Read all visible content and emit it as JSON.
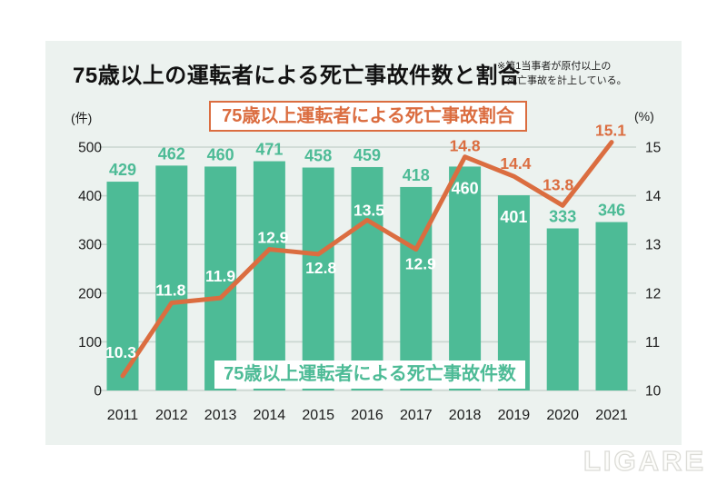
{
  "header": {
    "title": "75歳以上の運転者による死亡事故件数と割合",
    "note_line1": "※第1当事者が原付以上の",
    "note_line2": "死亡事故を計上している。"
  },
  "legend": {
    "rate_label": "75歳以上運転者による死亡事故割合",
    "count_label": "75歳以上運転者による死亡事故件数"
  },
  "page": {
    "watermark": "LIGARE"
  },
  "colors": {
    "background": "#ecf2ef",
    "bar": "#4dbb96",
    "line": "#db6d40",
    "grid": "#c9d5cf",
    "axis_text": "#1b1b1b",
    "label_on_bar": "#ffffff"
  },
  "chart_data": {
    "type": "bar+line",
    "title": "75歳以上の運転者による死亡事故件数と割合",
    "categories": [
      "2011",
      "2012",
      "2013",
      "2014",
      "2015",
      "2016",
      "2017",
      "2018",
      "2019",
      "2020",
      "2021"
    ],
    "series": [
      {
        "name": "75歳以上運転者による死亡事故件数",
        "type": "bar",
        "axis": "left",
        "values": [
          429,
          462,
          460,
          471,
          458,
          459,
          418,
          460,
          401,
          333,
          346
        ],
        "label_inside_indices": [
          7,
          8
        ]
      },
      {
        "name": "75歳以上運転者による死亡事故割合",
        "type": "line",
        "axis": "right",
        "values": [
          10.3,
          11.8,
          11.9,
          12.9,
          12.8,
          13.5,
          12.9,
          14.8,
          14.4,
          13.8,
          15.1
        ],
        "label_offsets": [
          [
            -2,
            -26
          ],
          [
            -1,
            -14
          ],
          [
            0,
            -24
          ],
          [
            4,
            -13
          ],
          [
            3,
            15
          ],
          [
            2,
            -11
          ],
          [
            5,
            16
          ],
          [
            0,
            -12
          ],
          [
            2,
            -14
          ],
          [
            -5,
            -23
          ],
          [
            -1,
            -13
          ]
        ],
        "label_on_bar": [
          true,
          true,
          true,
          true,
          true,
          true,
          true,
          false,
          false,
          false,
          false
        ]
      }
    ],
    "left_axis": {
      "unit": "(件)",
      "range": [
        0,
        500
      ],
      "ticks": [
        0,
        100,
        200,
        300,
        400,
        500
      ]
    },
    "right_axis": {
      "unit": "(%)",
      "range": [
        10,
        15
      ],
      "ticks": [
        10,
        11,
        12,
        13,
        14,
        15
      ]
    },
    "grid": true,
    "legend_position": "rate: boxed top-center; count: boxed bottom-center"
  }
}
